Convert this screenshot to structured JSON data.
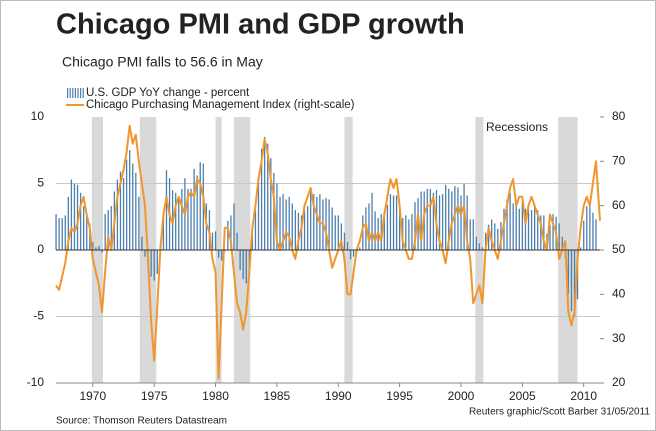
{
  "chart_data": {
    "type": "combo",
    "title": "Chicago PMI and GDP growth",
    "subtitle": "Chicago PMI falls to 56.6 in May",
    "source": "Source: Thomson Reuters Datastream",
    "credit": "Reuters graphic/Scott Barber 31/05/2011",
    "recession_label": "Recessions",
    "recession_color": "#d9d9d9",
    "recessions": [
      [
        1969.92,
        1970.83
      ],
      [
        1973.83,
        1975.17
      ],
      [
        1980.0,
        1980.5
      ],
      [
        1981.5,
        1982.83
      ],
      [
        1990.5,
        1991.17
      ],
      [
        2001.17,
        2001.83
      ],
      [
        2007.92,
        2009.5
      ]
    ],
    "xlim": [
      1967,
      2011.33
    ],
    "xticks": [
      1970,
      1975,
      1980,
      1985,
      1990,
      1995,
      2000,
      2005,
      2010
    ],
    "ylim": [
      -10,
      10
    ],
    "yticks": [
      -10,
      -5,
      0,
      5,
      10
    ],
    "y2lim": [
      20,
      80
    ],
    "y2ticks": [
      20,
      30,
      40,
      50,
      60,
      70,
      80
    ],
    "grid": true,
    "series": [
      {
        "name": "U.S. GDP YoY change - percent",
        "type": "bar",
        "axis": "y",
        "color": "#4d7fae",
        "x": [
          1967,
          1967.25,
          1967.5,
          1967.75,
          1968,
          1968.25,
          1968.5,
          1968.75,
          1969,
          1969.25,
          1969.5,
          1969.75,
          1970,
          1970.25,
          1970.5,
          1970.75,
          1971,
          1971.25,
          1971.5,
          1971.75,
          1972,
          1972.25,
          1972.5,
          1972.75,
          1973,
          1973.25,
          1973.5,
          1973.75,
          1974,
          1974.25,
          1974.5,
          1974.75,
          1975,
          1975.25,
          1975.5,
          1975.75,
          1976,
          1976.25,
          1976.5,
          1976.75,
          1977,
          1977.25,
          1977.5,
          1977.75,
          1978,
          1978.25,
          1978.5,
          1978.75,
          1979,
          1979.25,
          1979.5,
          1979.75,
          1980,
          1980.25,
          1980.5,
          1980.75,
          1981,
          1981.25,
          1981.5,
          1981.75,
          1982,
          1982.25,
          1982.5,
          1982.75,
          1983,
          1983.25,
          1983.5,
          1983.75,
          1984,
          1984.25,
          1984.5,
          1984.75,
          1985,
          1985.25,
          1985.5,
          1985.75,
          1986,
          1986.25,
          1986.5,
          1986.75,
          1987,
          1987.25,
          1987.5,
          1987.75,
          1988,
          1988.25,
          1988.5,
          1988.75,
          1989,
          1989.25,
          1989.5,
          1989.75,
          1990,
          1990.25,
          1990.5,
          1990.75,
          1991,
          1991.25,
          1991.5,
          1991.75,
          1992,
          1992.25,
          1992.5,
          1992.75,
          1993,
          1993.25,
          1993.5,
          1993.75,
          1994,
          1994.25,
          1994.5,
          1994.75,
          1995,
          1995.25,
          1995.5,
          1995.75,
          1996,
          1996.25,
          1996.5,
          1996.75,
          1997,
          1997.25,
          1997.5,
          1997.75,
          1998,
          1998.25,
          1998.5,
          1998.75,
          1999,
          1999.25,
          1999.5,
          1999.75,
          2000,
          2000.25,
          2000.5,
          2000.75,
          2001,
          2001.25,
          2001.5,
          2001.75,
          2002,
          2002.25,
          2002.5,
          2002.75,
          2003,
          2003.25,
          2003.5,
          2003.75,
          2004,
          2004.25,
          2004.5,
          2004.75,
          2005,
          2005.25,
          2005.5,
          2005.75,
          2006,
          2006.25,
          2006.5,
          2006.75,
          2007,
          2007.25,
          2007.5,
          2007.75,
          2008,
          2008.25,
          2008.5,
          2008.75,
          2009,
          2009.25,
          2009.5,
          2009.75,
          2010,
          2010.25,
          2010.5,
          2010.75,
          2011
        ],
        "values": [
          2.7,
          2.4,
          2.4,
          2.6,
          4.0,
          5.3,
          5.0,
          4.9,
          4.3,
          3.3,
          2.6,
          2.0,
          0.6,
          0.2,
          0.3,
          -0.2,
          2.7,
          3.0,
          3.3,
          4.4,
          5.3,
          5.9,
          5.4,
          6.8,
          7.5,
          6.5,
          5.8,
          4.0,
          1.0,
          -0.5,
          -1.5,
          -2.0,
          -2.3,
          -1.8,
          0.5,
          2.5,
          6.0,
          5.4,
          4.5,
          4.3,
          3.8,
          4.6,
          5.4,
          4.6,
          4.6,
          6.1,
          5.6,
          6.6,
          6.5,
          3.5,
          3.0,
          1.3,
          1.4,
          -0.6,
          -0.8,
          -0.1,
          2.2,
          2.6,
          3.5,
          1.3,
          -1.5,
          -2.2,
          -2.5,
          -1.4,
          1.1,
          3.0,
          5.1,
          7.6,
          8.5,
          8.0,
          6.9,
          5.8,
          5.0,
          4.0,
          4.2,
          3.8,
          4.0,
          3.5,
          3.0,
          2.8,
          2.6,
          3.0,
          3.3,
          4.5,
          4.2,
          4.0,
          4.2,
          3.8,
          3.9,
          3.8,
          3.2,
          2.6,
          2.6,
          2.0,
          1.3,
          0.6,
          -0.7,
          -0.5,
          -0.2,
          0.2,
          2.6,
          3.2,
          3.5,
          4.3,
          2.9,
          2.4,
          2.7,
          2.6,
          3.4,
          4.2,
          4.1,
          4.1,
          3.1,
          2.4,
          2.6,
          2.3,
          2.7,
          3.6,
          3.9,
          4.4,
          4.4,
          4.6,
          4.6,
          4.3,
          4.5,
          4.1,
          4.2,
          4.9,
          4.6,
          4.4,
          4.8,
          4.7,
          4.1,
          5.0,
          4.1,
          2.3,
          2.3,
          1.0,
          0.5,
          0.2,
          1.3,
          1.9,
          2.3,
          2.0,
          1.6,
          2.1,
          3.1,
          3.8,
          4.3,
          3.5,
          3.3,
          3.1,
          3.6,
          3.1,
          3.3,
          3.0,
          3.4,
          3.0,
          2.6,
          2.6,
          1.2,
          1.9,
          2.7,
          2.5,
          2.0,
          1.0,
          -0.6,
          -3.3,
          -4.6,
          -5.0,
          -3.7,
          0.2,
          2.2,
          3.3,
          3.5,
          2.8,
          2.3
        ]
      },
      {
        "name": "Chicago Purchasing Management Index (right-scale)",
        "type": "line",
        "axis": "y2",
        "color": "#f0962e",
        "x": [
          1967,
          1967.25,
          1967.5,
          1967.75,
          1968,
          1968.25,
          1968.5,
          1968.75,
          1969,
          1969.25,
          1969.5,
          1969.75,
          1970,
          1970.25,
          1970.5,
          1970.75,
          1971,
          1971.25,
          1971.5,
          1971.75,
          1972,
          1972.25,
          1972.5,
          1972.75,
          1973,
          1973.25,
          1973.5,
          1973.75,
          1974,
          1974.25,
          1974.5,
          1974.75,
          1975,
          1975.25,
          1975.5,
          1975.75,
          1976,
          1976.25,
          1976.5,
          1976.75,
          1977,
          1977.25,
          1977.5,
          1977.75,
          1978,
          1978.25,
          1978.5,
          1978.75,
          1979,
          1979.25,
          1979.5,
          1979.75,
          1980,
          1980.25,
          1980.5,
          1980.75,
          1981,
          1981.25,
          1981.5,
          1981.75,
          1982,
          1982.25,
          1982.5,
          1982.75,
          1983,
          1983.25,
          1983.5,
          1983.75,
          1984,
          1984.25,
          1984.5,
          1984.75,
          1985,
          1985.25,
          1985.5,
          1985.75,
          1986,
          1986.25,
          1986.5,
          1986.75,
          1987,
          1987.25,
          1987.5,
          1987.75,
          1988,
          1988.25,
          1988.5,
          1988.75,
          1989,
          1989.25,
          1989.5,
          1989.75,
          1990,
          1990.25,
          1990.5,
          1990.75,
          1991,
          1991.25,
          1991.5,
          1991.75,
          1992,
          1992.25,
          1992.5,
          1992.75,
          1993,
          1993.25,
          1993.5,
          1993.75,
          1994,
          1994.25,
          1994.5,
          1994.75,
          1995,
          1995.25,
          1995.5,
          1995.75,
          1996,
          1996.25,
          1996.5,
          1996.75,
          1997,
          1997.25,
          1997.5,
          1997.75,
          1998,
          1998.25,
          1998.5,
          1998.75,
          1999,
          1999.25,
          1999.5,
          1999.75,
          2000,
          2000.25,
          2000.5,
          2000.75,
          2001,
          2001.25,
          2001.5,
          2001.75,
          2002,
          2002.25,
          2002.5,
          2002.75,
          2003,
          2003.25,
          2003.5,
          2003.75,
          2004,
          2004.25,
          2004.5,
          2004.75,
          2005,
          2005.25,
          2005.5,
          2005.75,
          2006,
          2006.25,
          2006.5,
          2006.75,
          2007,
          2007.25,
          2007.5,
          2007.75,
          2008,
          2008.25,
          2008.5,
          2008.75,
          2009,
          2009.25,
          2009.5,
          2009.75,
          2010,
          2010.25,
          2010.5,
          2010.75,
          2011,
          2011.33
        ],
        "values": [
          42,
          41,
          44,
          47,
          52,
          55,
          54,
          56,
          60,
          62,
          58,
          55,
          48,
          45,
          42,
          36,
          45,
          53,
          50,
          56,
          62,
          65,
          68,
          72,
          78,
          74,
          76,
          70,
          65,
          60,
          48,
          34,
          25,
          37,
          50,
          58,
          62,
          58,
          56,
          60,
          62,
          60,
          58,
          62,
          63,
          62,
          66,
          65,
          62,
          56,
          54,
          48,
          45,
          21,
          38,
          55,
          55,
          52,
          45,
          38,
          36,
          32,
          36,
          45,
          55,
          60,
          66,
          70,
          75,
          72,
          66,
          62,
          52,
          50,
          52,
          54,
          53,
          50,
          48,
          52,
          55,
          60,
          62,
          64,
          60,
          58,
          56,
          56,
          54,
          50,
          46,
          48,
          50,
          52,
          48,
          40,
          40,
          45,
          50,
          52,
          55,
          56,
          52,
          54,
          52,
          54,
          52,
          58,
          62,
          66,
          64,
          66,
          60,
          52,
          50,
          48,
          48,
          52,
          58,
          52,
          58,
          60,
          60,
          62,
          56,
          52,
          50,
          47,
          52,
          56,
          58,
          60,
          58,
          60,
          52,
          48,
          38,
          40,
          42,
          38,
          50,
          55,
          52,
          50,
          48,
          52,
          56,
          60,
          64,
          66,
          60,
          62,
          62,
          56,
          60,
          62,
          60,
          58,
          56,
          52,
          50,
          58,
          56,
          54,
          48,
          50,
          52,
          36,
          33,
          36,
          48,
          55,
          60,
          62,
          60,
          65,
          70,
          56.6
        ]
      }
    ]
  }
}
